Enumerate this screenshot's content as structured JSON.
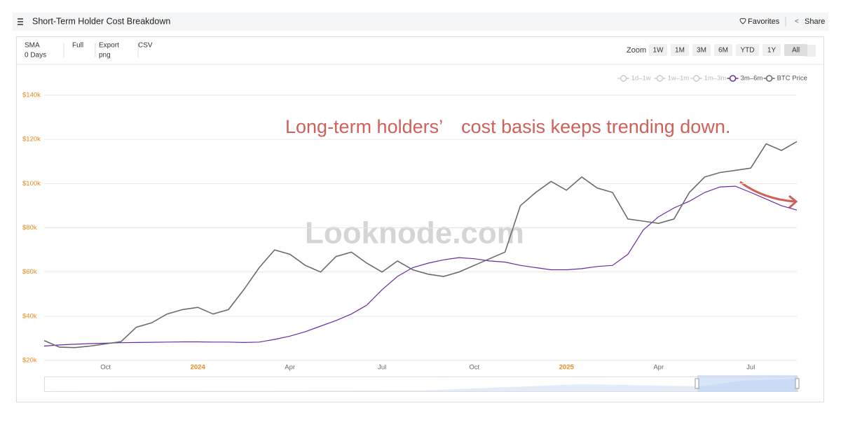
{
  "ui": {
    "title": "Short-Term Holder Cost Breakdown",
    "favorites": "Favorites",
    "share": "Share",
    "toolbar": [
      {
        "label": "SMA",
        "value": "0 Days"
      },
      {
        "label": "Full"
      },
      {
        "label": "Export",
        "value": "png"
      },
      {
        "label": "CSV"
      }
    ],
    "zoom_label": "Zoom",
    "zoom_buttons": [
      "1W",
      "1M",
      "3M",
      "6M",
      "YTD",
      "1Y",
      "All"
    ],
    "zoom_active": "All",
    "inactive_legend": [
      "1d–1w",
      "1w–1m",
      "1m–3m"
    ],
    "watermark": "Looknode.com"
  },
  "chart_data": {
    "type": "line",
    "annotation": "Long-term holders’　cost basis keeps trending down.",
    "categories": [
      null,
      null,
      null,
      null,
      "Oct",
      null,
      null,
      null,
      null,
      null,
      "2024",
      null,
      null,
      null,
      null,
      null,
      "Apr",
      null,
      null,
      null,
      null,
      null,
      "Jul",
      null,
      null,
      null,
      null,
      null,
      "Oct",
      null,
      null,
      null,
      null,
      null,
      "2025",
      null,
      null,
      null,
      null,
      null,
      "Apr",
      null,
      null,
      null,
      null,
      null,
      "Jul",
      null,
      null,
      null
    ],
    "series": [
      {
        "name": "3m–6m",
        "color": "#6a2aa6",
        "values": [
          26500,
          27000,
          27300,
          27600,
          27800,
          28000,
          28100,
          28200,
          28300,
          28400,
          28400,
          28300,
          28300,
          28100,
          28300,
          29500,
          31000,
          33000,
          35500,
          38000,
          41000,
          45000,
          52000,
          58000,
          62000,
          64000,
          65500,
          66500,
          66000,
          65000,
          64500,
          63000,
          62000,
          61000,
          61000,
          61500,
          62500,
          63000,
          68000,
          79000,
          85000,
          89000,
          92000,
          96000,
          98500,
          98800,
          96000,
          93000,
          90000,
          88000
        ]
      },
      {
        "name": "BTC Price",
        "color": "#6b6b6b",
        "values": [
          29000,
          26000,
          25800,
          26500,
          27500,
          28500,
          35000,
          37000,
          41000,
          43000,
          44000,
          41000,
          43000,
          52000,
          62000,
          70000,
          68000,
          63000,
          60000,
          67000,
          69000,
          64000,
          60000,
          65000,
          61000,
          59000,
          58000,
          60000,
          63000,
          66000,
          69000,
          90000,
          96000,
          101000,
          97000,
          103000,
          98000,
          96000,
          84000,
          83000,
          82000,
          84000,
          96000,
          103000,
          105000,
          106000,
          107000,
          118000,
          115000,
          119000
        ]
      }
    ],
    "ylim": [
      20000,
      140000
    ],
    "yticks": [
      {
        "value": 20000,
        "label": "$20k"
      },
      {
        "value": 40000,
        "label": "$40k"
      },
      {
        "value": 60000,
        "label": "$60k"
      },
      {
        "value": 80000,
        "label": "$80k"
      },
      {
        "value": 100000,
        "label": "$100k"
      },
      {
        "value": 120000,
        "label": "$120k"
      },
      {
        "value": 140000,
        "label": "$140k"
      }
    ],
    "grid": true
  }
}
